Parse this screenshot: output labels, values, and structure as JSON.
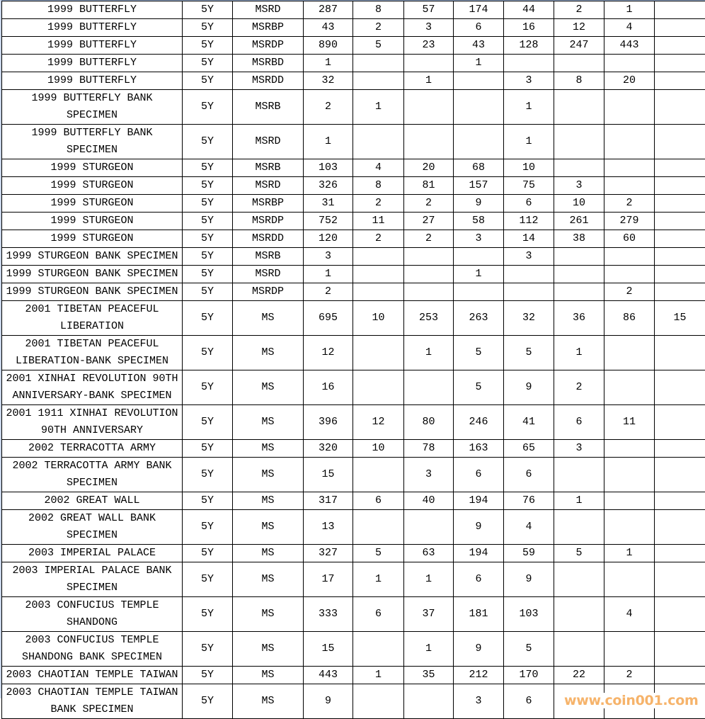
{
  "rows": [
    [
      "1999 BUTTERFLY",
      "5Y",
      "MSRD",
      "287",
      "8",
      "57",
      "174",
      "44",
      "2",
      "1",
      ""
    ],
    [
      "1999 BUTTERFLY",
      "5Y",
      "MSRBP",
      "43",
      "2",
      "3",
      "6",
      "16",
      "12",
      "4",
      ""
    ],
    [
      "1999 BUTTERFLY",
      "5Y",
      "MSRDP",
      "890",
      "5",
      "23",
      "43",
      "128",
      "247",
      "443",
      ""
    ],
    [
      "1999 BUTTERFLY",
      "5Y",
      "MSRBD",
      "1",
      "",
      "",
      "1",
      "",
      "",
      "",
      ""
    ],
    [
      "1999 BUTTERFLY",
      "5Y",
      "MSRDD",
      "32",
      "",
      "1",
      "",
      "3",
      "8",
      "20",
      ""
    ],
    [
      "1999 BUTTERFLY BANK SPECIMEN",
      "5Y",
      "MSRB",
      "2",
      "1",
      "",
      "",
      "1",
      "",
      "",
      ""
    ],
    [
      "1999 BUTTERFLY BANK SPECIMEN",
      "5Y",
      "MSRD",
      "1",
      "",
      "",
      "",
      "1",
      "",
      "",
      ""
    ],
    [
      "1999 STURGEON",
      "5Y",
      "MSRB",
      "103",
      "4",
      "20",
      "68",
      "10",
      "",
      "",
      ""
    ],
    [
      "1999 STURGEON",
      "5Y",
      "MSRD",
      "326",
      "8",
      "81",
      "157",
      "75",
      "3",
      "",
      ""
    ],
    [
      "1999 STURGEON",
      "5Y",
      "MSRBP",
      "31",
      "2",
      "2",
      "9",
      "6",
      "10",
      "2",
      ""
    ],
    [
      "1999 STURGEON",
      "5Y",
      "MSRDP",
      "752",
      "11",
      "27",
      "58",
      "112",
      "261",
      "279",
      ""
    ],
    [
      "1999 STURGEON",
      "5Y",
      "MSRDD",
      "120",
      "2",
      "2",
      "3",
      "14",
      "38",
      "60",
      ""
    ],
    [
      "1999 STURGEON BANK SPECIMEN",
      "5Y",
      "MSRB",
      "3",
      "",
      "",
      "",
      "3",
      "",
      "",
      ""
    ],
    [
      "1999 STURGEON BANK SPECIMEN",
      "5Y",
      "MSRD",
      "1",
      "",
      "",
      "1",
      "",
      "",
      "",
      ""
    ],
    [
      "1999 STURGEON BANK SPECIMEN",
      "5Y",
      "MSRDP",
      "2",
      "",
      "",
      "",
      "",
      "",
      "2",
      ""
    ],
    [
      "2001 TIBETAN PEACEFUL LIBERATION",
      "5Y",
      "MS",
      "695",
      "10",
      "253",
      "263",
      "32",
      "36",
      "86",
      "15"
    ],
    [
      "2001 TIBETAN PEACEFUL LIBERATION-BANK SPECIMEN",
      "5Y",
      "MS",
      "12",
      "",
      "1",
      "5",
      "5",
      "1",
      "",
      ""
    ],
    [
      "2001 XINHAI REVOLUTION 90TH ANNIVERSARY-BANK SPECIMEN",
      "5Y",
      "MS",
      "16",
      "",
      "",
      "5",
      "9",
      "2",
      "",
      ""
    ],
    [
      "2001 1911 XINHAI REVOLUTION 90TH ANNIVERSARY",
      "5Y",
      "MS",
      "396",
      "12",
      "80",
      "246",
      "41",
      "6",
      "11",
      ""
    ],
    [
      "2002 TERRACOTTA ARMY",
      "5Y",
      "MS",
      "320",
      "10",
      "78",
      "163",
      "65",
      "3",
      "",
      ""
    ],
    [
      "2002 TERRACOTTA ARMY BANK SPECIMEN",
      "5Y",
      "MS",
      "15",
      "",
      "3",
      "6",
      "6",
      "",
      "",
      ""
    ],
    [
      "2002 GREAT WALL",
      "5Y",
      "MS",
      "317",
      "6",
      "40",
      "194",
      "76",
      "1",
      "",
      ""
    ],
    [
      "2002 GREAT WALL BANK SPECIMEN",
      "5Y",
      "MS",
      "13",
      "",
      "",
      "9",
      "4",
      "",
      "",
      ""
    ],
    [
      "2003 IMPERIAL PALACE",
      "5Y",
      "MS",
      "327",
      "5",
      "63",
      "194",
      "59",
      "5",
      "1",
      ""
    ],
    [
      "2003 IMPERIAL PALACE BANK SPECIMEN",
      "5Y",
      "MS",
      "17",
      "1",
      "1",
      "6",
      "9",
      "",
      "",
      ""
    ],
    [
      "2003 CONFUCIUS TEMPLE SHANDONG",
      "5Y",
      "MS",
      "333",
      "6",
      "37",
      "181",
      "103",
      "",
      "4",
      ""
    ],
    [
      "2003 CONFUCIUS TEMPLE SHANDONG BANK SPECIMEN",
      "5Y",
      "MS",
      "15",
      "",
      "1",
      "9",
      "5",
      "",
      "",
      ""
    ],
    [
      "2003 CHAOTIAN TEMPLE TAIWAN",
      "5Y",
      "MS",
      "443",
      "1",
      "35",
      "212",
      "170",
      "22",
      "2",
      ""
    ],
    [
      "2003 CHAOTIAN TEMPLE TAIWAN BANK SPECIMEN",
      "5Y",
      "MS",
      "9",
      "",
      "",
      "3",
      "6",
      "",
      "",
      ""
    ]
  ],
  "watermark": "www.coin001.com"
}
